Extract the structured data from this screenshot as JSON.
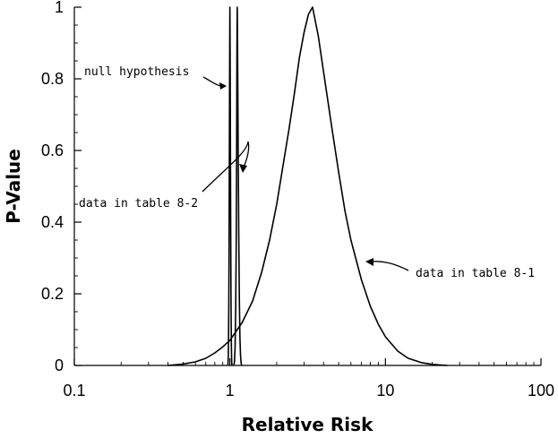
{
  "chart_data": {
    "type": "line",
    "title": "",
    "xlabel": "Relative Risk",
    "ylabel": "P-Value",
    "xscale": "log",
    "xlim": [
      0.1,
      100
    ],
    "ylim": [
      0,
      1
    ],
    "grid": false,
    "xticks": [
      {
        "value": 0.1,
        "label": "0.1"
      },
      {
        "value": 1,
        "label": "1"
      },
      {
        "value": 10,
        "label": "10"
      },
      {
        "value": 100,
        "label": "100"
      }
    ],
    "yticks": [
      {
        "value": 0,
        "label": "0"
      },
      {
        "value": 0.2,
        "label": "0.2"
      },
      {
        "value": 0.4,
        "label": "0.4"
      },
      {
        "value": 0.6,
        "label": "0.6"
      },
      {
        "value": 0.8,
        "label": "0.8"
      },
      {
        "value": 1,
        "label": "1"
      }
    ],
    "series": [
      {
        "key": "null_hypothesis",
        "x": [
          0.97,
          0.972,
          0.975,
          0.978,
          0.981,
          0.984,
          0.987,
          0.99,
          0.993,
          0.996,
          0.998,
          1.0,
          1.002,
          1.004,
          1.007,
          1.01,
          1.013,
          1.016,
          1.019,
          1.022,
          1.025,
          1.028,
          1.031
        ],
        "y": [
          0.0,
          0.004,
          0.015,
          0.04,
          0.09,
          0.17,
          0.29,
          0.45,
          0.63,
          0.82,
          0.93,
          1.0,
          0.93,
          0.85,
          0.68,
          0.5,
          0.34,
          0.21,
          0.12,
          0.06,
          0.025,
          0.008,
          0.0
        ]
      },
      {
        "key": "data_table_8_2",
        "x": [
          1.06,
          1.07,
          1.08,
          1.09,
          1.1,
          1.105,
          1.11,
          1.115,
          1.12,
          1.13,
          1.14,
          1.15,
          1.16,
          1.17,
          1.18,
          1.19
        ],
        "y": [
          0.0,
          0.01,
          0.05,
          0.16,
          0.38,
          0.62,
          0.88,
          1.0,
          0.9,
          0.62,
          0.37,
          0.19,
          0.08,
          0.03,
          0.008,
          0.0
        ]
      },
      {
        "key": "data_table_8_1",
        "x": [
          0.4,
          0.5,
          0.6,
          0.7,
          0.8,
          0.9,
          1.0,
          1.2,
          1.4,
          1.6,
          1.8,
          2.0,
          2.2,
          2.4,
          2.6,
          2.8,
          3.0,
          3.2,
          3.4,
          3.7,
          4.0,
          4.5,
          5.0,
          5.5,
          6.0,
          7.0,
          8.0,
          9.0,
          10,
          12,
          14,
          17,
          20,
          25
        ],
        "y": [
          0.0,
          0.004,
          0.01,
          0.02,
          0.035,
          0.052,
          0.07,
          0.12,
          0.18,
          0.26,
          0.35,
          0.45,
          0.56,
          0.66,
          0.76,
          0.86,
          0.93,
          0.98,
          1.0,
          0.92,
          0.82,
          0.67,
          0.54,
          0.43,
          0.35,
          0.24,
          0.165,
          0.115,
          0.08,
          0.04,
          0.02,
          0.008,
          0.003,
          0.0
        ]
      }
    ],
    "annotations": [
      {
        "text": "null hypothesis",
        "target_series": "null_hypothesis",
        "point": [
          0.98,
          0.8
        ]
      },
      {
        "text": "data in table 8-2",
        "target_series": "data_table_8_2",
        "point": [
          1.13,
          0.54
        ]
      },
      {
        "text": "data in table 8-1",
        "target_series": "data_table_8_1",
        "point": [
          7.5,
          0.29
        ]
      }
    ]
  }
}
